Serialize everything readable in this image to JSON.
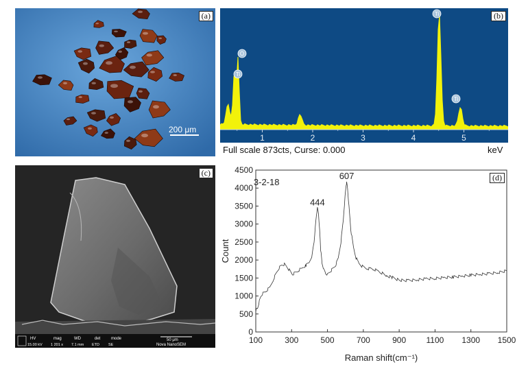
{
  "panels": {
    "a": {
      "label": "(a)",
      "scale_bar": "200 μm"
    },
    "b": {
      "label": "(b)",
      "peak_labels": [
        "O",
        "Ti",
        "Ti",
        "Ti"
      ],
      "x_ticks": [
        "1",
        "2",
        "3",
        "4",
        "5"
      ],
      "footer_text": "Full scale  873cts, Curse: 0.000",
      "unit": "keV",
      "colors": {
        "background": "#0e4a84",
        "spectrum": "#f2f20a"
      }
    },
    "c": {
      "label": "(c)",
      "sem_bar": {
        "fields": [
          {
            "name": "HV",
            "value": "15.00 kV"
          },
          {
            "name": "mag",
            "value": "1 201 x"
          },
          {
            "name": "WD",
            "value": "7.1 mm"
          },
          {
            "name": "det",
            "value": "ETD"
          },
          {
            "name": "mode",
            "value": "SE"
          }
        ],
        "scale": "50 μm",
        "instrument": "Nova NanoSEM"
      }
    },
    "d": {
      "label": "(d)"
    }
  },
  "chart_data": {
    "type": "line",
    "title": "",
    "xlabel": "Raman shift(cm⁻¹)",
    "ylabel": "Count",
    "xlim": [
      100,
      1500
    ],
    "ylim": [
      0,
      4500
    ],
    "x_ticks": [
      100,
      300,
      500,
      700,
      900,
      1100,
      1300,
      1500
    ],
    "y_ticks": [
      0,
      500,
      1000,
      1500,
      2000,
      2500,
      3000,
      3500,
      4000,
      4500
    ],
    "annotations": [
      {
        "text": "3-2-18",
        "x": 160,
        "y": 4080
      },
      {
        "text": "444",
        "x": 444,
        "y": 3520
      },
      {
        "text": "607",
        "x": 607,
        "y": 4250
      }
    ],
    "series": [
      {
        "name": "3-2-18",
        "points": [
          [
            100,
            600
          ],
          [
            110,
            650
          ],
          [
            120,
            850
          ],
          [
            130,
            1000
          ],
          [
            140,
            1080
          ],
          [
            160,
            1150
          ],
          [
            180,
            1250
          ],
          [
            200,
            1480
          ],
          [
            215,
            1640
          ],
          [
            230,
            1780
          ],
          [
            245,
            1860
          ],
          [
            260,
            1880
          ],
          [
            275,
            1800
          ],
          [
            290,
            1700
          ],
          [
            305,
            1600
          ],
          [
            320,
            1650
          ],
          [
            340,
            1720
          ],
          [
            360,
            1780
          ],
          [
            380,
            1850
          ],
          [
            400,
            1950
          ],
          [
            415,
            2150
          ],
          [
            425,
            2500
          ],
          [
            432,
            2900
          ],
          [
            438,
            3250
          ],
          [
            444,
            3450
          ],
          [
            450,
            3300
          ],
          [
            456,
            2850
          ],
          [
            462,
            2300
          ],
          [
            470,
            1900
          ],
          [
            480,
            1720
          ],
          [
            490,
            1620
          ],
          [
            500,
            1600
          ],
          [
            515,
            1680
          ],
          [
            530,
            1760
          ],
          [
            545,
            1850
          ],
          [
            560,
            2050
          ],
          [
            575,
            2500
          ],
          [
            588,
            3100
          ],
          [
            598,
            3750
          ],
          [
            604,
            4080
          ],
          [
            607,
            4150
          ],
          [
            612,
            4000
          ],
          [
            620,
            3500
          ],
          [
            630,
            2850
          ],
          [
            645,
            2350
          ],
          [
            660,
            2050
          ],
          [
            680,
            1880
          ],
          [
            700,
            1800
          ],
          [
            720,
            1760
          ],
          [
            740,
            1760
          ],
          [
            760,
            1740
          ],
          [
            780,
            1700
          ],
          [
            800,
            1650
          ],
          [
            830,
            1560
          ],
          [
            860,
            1520
          ],
          [
            900,
            1440
          ],
          [
            950,
            1430
          ],
          [
            1000,
            1450
          ],
          [
            1050,
            1480
          ],
          [
            1100,
            1490
          ],
          [
            1150,
            1510
          ],
          [
            1200,
            1530
          ],
          [
            1250,
            1550
          ],
          [
            1300,
            1580
          ],
          [
            1350,
            1600
          ],
          [
            1400,
            1620
          ],
          [
            1450,
            1650
          ],
          [
            1500,
            1700
          ]
        ]
      }
    ]
  }
}
